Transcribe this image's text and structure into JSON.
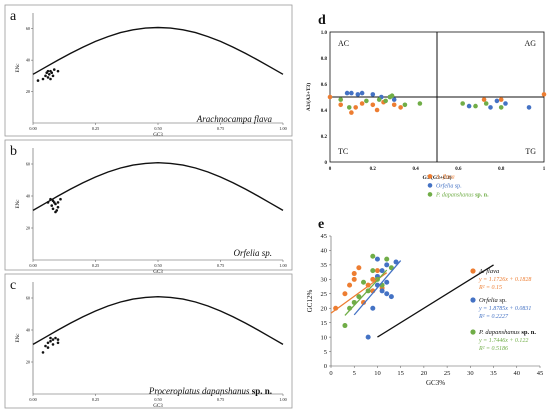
{
  "chart_data": [
    {
      "panel_letter": "a",
      "type": "scatter",
      "species_label": "Arachnocampa flava",
      "xlabel": "GC3",
      "ylabel": "ENc",
      "xlim": [
        0,
        1
      ],
      "ylim": [
        0,
        70
      ],
      "xticks": [
        "0.00",
        "0.25",
        "0.50",
        "0.75",
        "1.00"
      ],
      "yticks": [
        "20",
        "40",
        "60"
      ],
      "curve_points": [
        [
          0.0,
          31.0
        ],
        [
          0.05,
          35.5
        ],
        [
          0.1,
          40.0
        ],
        [
          0.15,
          44.3
        ],
        [
          0.2,
          48.3
        ],
        [
          0.25,
          51.9
        ],
        [
          0.3,
          55.0
        ],
        [
          0.35,
          57.5
        ],
        [
          0.4,
          59.3
        ],
        [
          0.45,
          60.4
        ],
        [
          0.5,
          60.8
        ],
        [
          0.55,
          60.4
        ],
        [
          0.6,
          59.3
        ],
        [
          0.65,
          57.5
        ],
        [
          0.7,
          55.0
        ],
        [
          0.75,
          51.9
        ],
        [
          0.8,
          48.3
        ],
        [
          0.85,
          44.3
        ],
        [
          0.9,
          40.0
        ],
        [
          0.95,
          35.5
        ],
        [
          1.0,
          31.0
        ]
      ],
      "points": [
        [
          0.02,
          27
        ],
        [
          0.04,
          28
        ],
        [
          0.05,
          30
        ],
        [
          0.055,
          32
        ],
        [
          0.06,
          33
        ],
        [
          0.065,
          31
        ],
        [
          0.07,
          33
        ],
        [
          0.075,
          32
        ],
        [
          0.08,
          30
        ],
        [
          0.085,
          34
        ],
        [
          0.1,
          33
        ],
        [
          0.07,
          28
        ],
        [
          0.06,
          29
        ]
      ]
    },
    {
      "panel_letter": "b",
      "type": "scatter",
      "species_label": "Orfelia sp.",
      "xlabel": "GC3",
      "ylabel": "ENc",
      "xlim": [
        0,
        1
      ],
      "ylim": [
        0,
        70
      ],
      "xticks": [
        "0.00",
        "0.25",
        "0.50",
        "0.75",
        "1.00"
      ],
      "yticks": [
        "20",
        "40",
        "60"
      ],
      "curve_points": [
        [
          0.0,
          31.0
        ],
        [
          0.05,
          35.5
        ],
        [
          0.1,
          40.0
        ],
        [
          0.15,
          44.3
        ],
        [
          0.2,
          48.3
        ],
        [
          0.25,
          51.9
        ],
        [
          0.3,
          55.0
        ],
        [
          0.35,
          57.5
        ],
        [
          0.4,
          59.3
        ],
        [
          0.45,
          60.4
        ],
        [
          0.5,
          60.8
        ],
        [
          0.55,
          60.4
        ],
        [
          0.6,
          59.3
        ],
        [
          0.65,
          57.5
        ],
        [
          0.7,
          55.0
        ],
        [
          0.75,
          51.9
        ],
        [
          0.8,
          48.3
        ],
        [
          0.85,
          44.3
        ],
        [
          0.9,
          40.0
        ],
        [
          0.95,
          35.5
        ],
        [
          1.0,
          31.0
        ]
      ],
      "points": [
        [
          0.06,
          36
        ],
        [
          0.07,
          38
        ],
        [
          0.075,
          34
        ],
        [
          0.08,
          32
        ],
        [
          0.085,
          36
        ],
        [
          0.09,
          35
        ],
        [
          0.1,
          33
        ],
        [
          0.09,
          30
        ],
        [
          0.11,
          38
        ],
        [
          0.08,
          37
        ],
        [
          0.1,
          36
        ],
        [
          0.095,
          31
        ]
      ]
    },
    {
      "panel_letter": "c",
      "type": "scatter",
      "species_label_italic": "Proceroplatus dapanshanus",
      "species_label_bold": "sp. n.",
      "xlabel": "GC3",
      "ylabel": "ENc",
      "xlim": [
        0,
        1
      ],
      "ylim": [
        0,
        70
      ],
      "xticks": [
        "0.00",
        "0.25",
        "0.50",
        "0.75",
        "1.00"
      ],
      "yticks": [
        "20",
        "40",
        "60"
      ],
      "curve_points": [
        [
          0.0,
          31.0
        ],
        [
          0.05,
          35.5
        ],
        [
          0.1,
          40.0
        ],
        [
          0.15,
          44.3
        ],
        [
          0.2,
          48.3
        ],
        [
          0.25,
          51.9
        ],
        [
          0.3,
          55.0
        ],
        [
          0.35,
          57.5
        ],
        [
          0.4,
          59.3
        ],
        [
          0.45,
          60.4
        ],
        [
          0.5,
          60.8
        ],
        [
          0.55,
          60.4
        ],
        [
          0.6,
          59.3
        ],
        [
          0.65,
          57.5
        ],
        [
          0.7,
          55.0
        ],
        [
          0.75,
          51.9
        ],
        [
          0.8,
          48.3
        ],
        [
          0.85,
          44.3
        ],
        [
          0.9,
          40.0
        ],
        [
          0.95,
          35.5
        ],
        [
          1.0,
          31.0
        ]
      ],
      "points": [
        [
          0.04,
          26
        ],
        [
          0.05,
          30
        ],
        [
          0.06,
          32
        ],
        [
          0.07,
          33
        ],
        [
          0.08,
          34
        ],
        [
          0.09,
          35
        ],
        [
          0.1,
          34
        ],
        [
          0.1,
          32
        ],
        [
          0.08,
          31
        ],
        [
          0.06,
          29
        ],
        [
          0.07,
          35
        ]
      ]
    },
    {
      "panel_letter": "d",
      "type": "scatter",
      "xlabel": "G3/(G3+C3)",
      "ylabel": "A3/(A3+T3)",
      "xlim": [
        0,
        1
      ],
      "ylim": [
        0,
        1
      ],
      "xticks": [
        "0",
        "0.2",
        "0.4",
        "0.6",
        "0.8",
        "1"
      ],
      "yticks": [
        "0",
        "0.2",
        "0.4",
        "0.6",
        "0.8",
        "1.0"
      ],
      "quadrant_labels": {
        "top_left": "AC",
        "top_right": "AG",
        "bottom_left": "TC",
        "bottom_right": "TG"
      },
      "colors": {
        "A. flava": "#ed7d31",
        "Orfelia sp.": "#4472c4",
        "P. dapanshanus": "#70ad47"
      },
      "series": [
        {
          "legend_italic": "A. flava",
          "legend_bold": "",
          "color": "#ed7d31",
          "points": [
            [
              0.0,
              0.5
            ],
            [
              0.05,
              0.44
            ],
            [
              0.1,
              0.38
            ],
            [
              0.12,
              0.42
            ],
            [
              0.15,
              0.45
            ],
            [
              0.2,
              0.44
            ],
            [
              0.25,
              0.46
            ],
            [
              0.3,
              0.44
            ],
            [
              0.33,
              0.42
            ],
            [
              0.72,
              0.48
            ],
            [
              0.8,
              0.48
            ],
            [
              1.0,
              0.52
            ],
            [
              0.22,
              0.4
            ]
          ]
        },
        {
          "legend_italic": "Orfelia",
          "legend_plain": " sp.",
          "legend_bold": "",
          "color": "#4472c4",
          "points": [
            [
              0.08,
              0.53
            ],
            [
              0.1,
              0.53
            ],
            [
              0.13,
              0.52
            ],
            [
              0.15,
              0.53
            ],
            [
              0.2,
              0.52
            ],
            [
              0.24,
              0.5
            ],
            [
              0.28,
              0.5
            ],
            [
              0.3,
              0.48
            ],
            [
              0.65,
              0.43
            ],
            [
              0.75,
              0.42
            ],
            [
              0.78,
              0.47
            ],
            [
              0.82,
              0.45
            ],
            [
              0.93,
              0.42
            ]
          ]
        },
        {
          "legend_italic": "P. dapanshanus",
          "legend_bold": " sp. n.",
          "color": "#70ad47",
          "points": [
            [
              0.05,
              0.48
            ],
            [
              0.09,
              0.42
            ],
            [
              0.17,
              0.47
            ],
            [
              0.23,
              0.48
            ],
            [
              0.26,
              0.47
            ],
            [
              0.28,
              0.5
            ],
            [
              0.29,
              0.51
            ],
            [
              0.35,
              0.44
            ],
            [
              0.42,
              0.45
            ],
            [
              0.62,
              0.45
            ],
            [
              0.68,
              0.43
            ],
            [
              0.73,
              0.45
            ],
            [
              0.8,
              0.42
            ]
          ]
        }
      ]
    },
    {
      "panel_letter": "e",
      "type": "scatter",
      "xlabel": "GC3%",
      "ylabel": "GC12%",
      "xlim": [
        0,
        45
      ],
      "ylim": [
        0,
        45
      ],
      "xticks": [
        "0",
        "5",
        "10",
        "15",
        "20",
        "25",
        "30",
        "35",
        "40",
        "45"
      ],
      "yticks": [
        "0",
        "5",
        "10",
        "15",
        "20",
        "25",
        "30",
        "35",
        "40",
        "45"
      ],
      "neutral_line": [
        [
          10,
          10
        ],
        [
          35,
          35
        ]
      ],
      "series": [
        {
          "legend_italic": "A. flava",
          "legend_bold": "",
          "color": "#ed7d31",
          "equation": "y = 1.1726x + 0.1828",
          "r2": "R² = 0.15",
          "fit_line": [
            [
              0,
              18.3
            ],
            [
              12,
              32.3
            ]
          ],
          "points": [
            [
              1,
              20
            ],
            [
              3,
              25
            ],
            [
              4,
              28
            ],
            [
              5,
              30
            ],
            [
              5,
              32
            ],
            [
              6,
              34
            ],
            [
              7,
              22
            ],
            [
              8,
              28
            ],
            [
              9,
              30
            ],
            [
              9,
              26
            ],
            [
              10,
              33
            ],
            [
              11,
              27
            ]
          ]
        },
        {
          "legend_italic": "Orfelia",
          "legend_plain": " sp.",
          "legend_bold": "",
          "color": "#4472c4",
          "equation": "y = 1.8785x + 0.0831",
          "r2": "R² = 0.2227",
          "fit_line": [
            [
              5,
              17.7
            ],
            [
              15,
              36.5
            ]
          ],
          "points": [
            [
              8,
              10
            ],
            [
              9,
              20
            ],
            [
              10,
              28
            ],
            [
              10,
              31
            ],
            [
              11,
              33
            ],
            [
              11,
              26
            ],
            [
              12,
              25
            ],
            [
              12,
              29
            ],
            [
              13,
              24
            ],
            [
              14,
              36
            ],
            [
              10,
              37
            ],
            [
              12,
              35
            ]
          ]
        },
        {
          "legend_italic": "P. dapanshanus",
          "legend_bold": " sp. n.",
          "color": "#70ad47",
          "equation": "y = 1.7446x + 0.122",
          "r2": "R² = 0.5186",
          "fit_line": [
            [
              3,
              17.5
            ],
            [
              12,
              33.2
            ]
          ],
          "points": [
            [
              3,
              14
            ],
            [
              4,
              20
            ],
            [
              5,
              22
            ],
            [
              6,
              24
            ],
            [
              8,
              26
            ],
            [
              9,
              38
            ],
            [
              10,
              30
            ],
            [
              11,
              28
            ],
            [
              12,
              37
            ],
            [
              13,
              34
            ],
            [
              9,
              33
            ],
            [
              7,
              29
            ]
          ]
        }
      ]
    }
  ]
}
